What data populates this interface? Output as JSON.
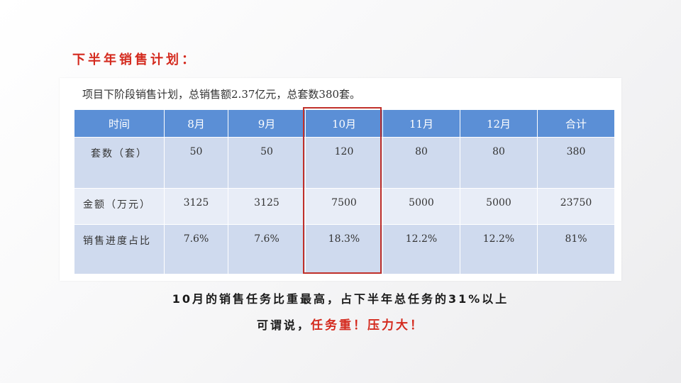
{
  "heading": "下半年销售计划：",
  "intro": "项目下阶段销售计划，总销售额2.37亿元，总套数380套。",
  "table": {
    "headers": [
      "时间",
      "8月",
      "9月",
      "10月",
      "11月",
      "12月",
      "合计"
    ],
    "rows": [
      {
        "label": "套数（套）",
        "values": [
          "50",
          "50",
          "120",
          "80",
          "80",
          "380"
        ]
      },
      {
        "label": "金额（万元）",
        "values": [
          "3125",
          "3125",
          "7500",
          "5000",
          "5000",
          "23750"
        ]
      },
      {
        "label": "销售进度占比",
        "values": [
          "7.6%",
          "7.6%",
          "18.3%",
          "12.2%",
          "12.2%",
          "81%"
        ]
      }
    ]
  },
  "notes": {
    "line1": "10月的销售任务比重最高，占下半年总任务的31%以上",
    "line2_prefix": "可谓说，",
    "line2_emphasis": "任务重！压力大！"
  },
  "colors": {
    "accent_red": "#d42a1e",
    "header_blue": "#5b8fd6",
    "row_blue": "#cfdaee",
    "row_light": "#e8edf7",
    "highlight_border": "#c0302a"
  }
}
